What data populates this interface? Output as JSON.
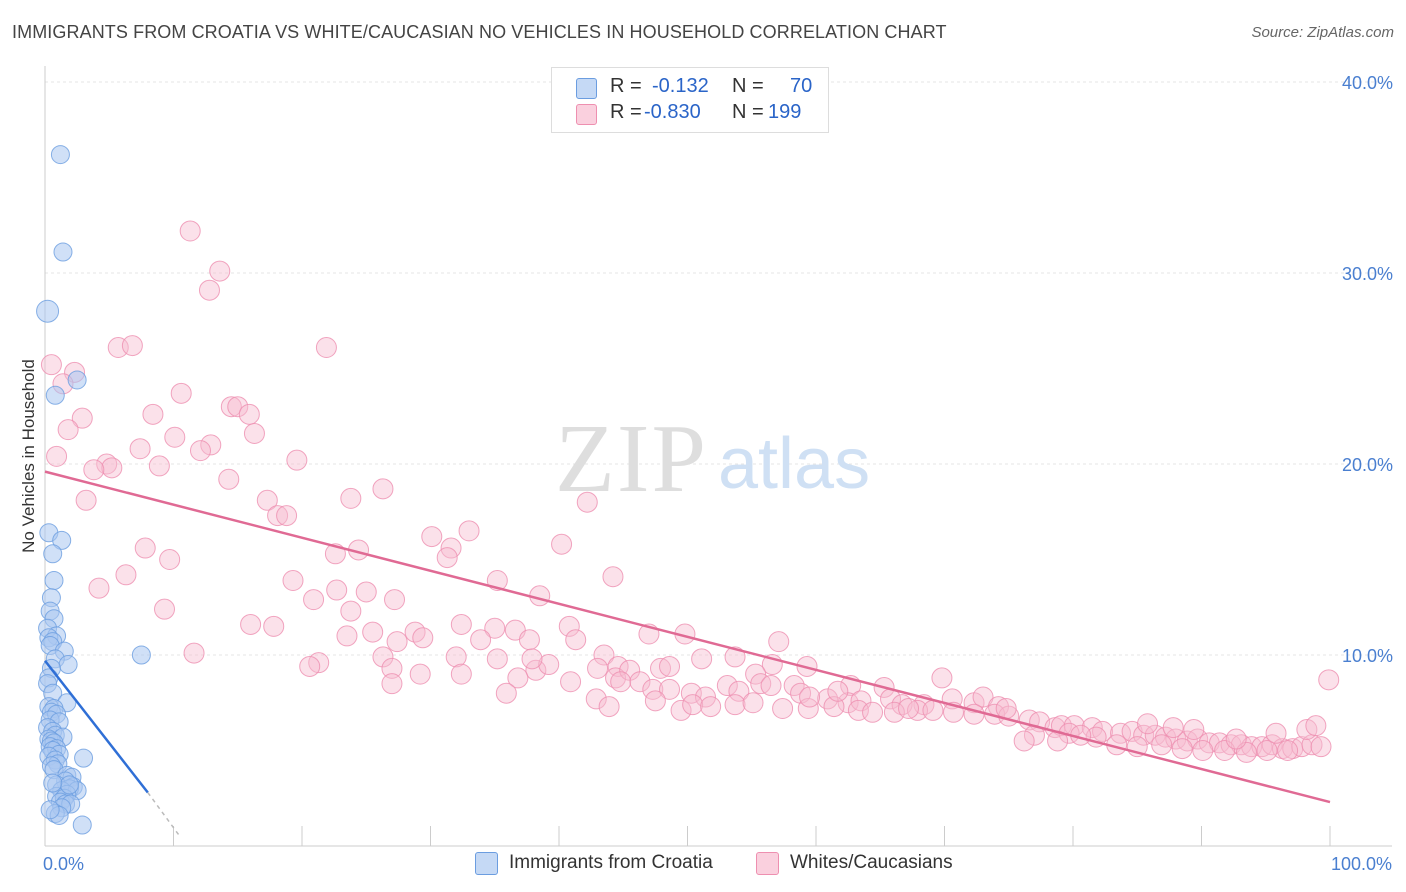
{
  "title": "IMMIGRANTS FROM CROATIA VS WHITE/CAUCASIAN NO VEHICLES IN HOUSEHOLD CORRELATION CHART",
  "source": "Source: ZipAtlas.com",
  "watermark": {
    "zip": "ZIP",
    "atlas": "atlas"
  },
  "legend": {
    "r_label": "R =",
    "n_label": "N =",
    "series": [
      {
        "r": "-0.132",
        "n": "70",
        "color": "#a9c6f0",
        "stroke": "#6b9de0"
      },
      {
        "r": "-0.830",
        "n": "199",
        "color": "#f7bcd0",
        "stroke": "#ee8fb0"
      }
    ]
  },
  "bottom_legend": [
    {
      "label": "Immigrants from Croatia",
      "color": "#a9c6f0",
      "stroke": "#6b9de0"
    },
    {
      "label": "Whites/Caucasians",
      "color": "#f7bcd0",
      "stroke": "#ee8fb0"
    }
  ],
  "chart_data": {
    "type": "scatter",
    "title": "IMMIGRANTS FROM CROATIA VS WHITE/CAUCASIAN NO VEHICLES IN HOUSEHOLD CORRELATION CHART",
    "xlabel": "",
    "ylabel": "No Vehicles in Household",
    "xlim": [
      0,
      100
    ],
    "ylim": [
      0,
      42
    ],
    "x_tick_labels": [
      "0.0%",
      "100.0%"
    ],
    "y_ticks": [
      10,
      20,
      30,
      40
    ],
    "y_tick_labels": [
      "10.0%",
      "20.0%",
      "30.0%",
      "40.0%"
    ],
    "grid": true,
    "legend_position": "top-center",
    "series": [
      {
        "name": "Immigrants from Croatia",
        "color": "#6b9de0",
        "r": -0.132,
        "n": 70,
        "trend": {
          "x0": 0,
          "y0": 9.7,
          "x1": 8.0,
          "y1": 2.8,
          "dash_to_x": 10.5,
          "dash_to_y": 0.5
        },
        "points": [
          [
            1.2,
            36.2
          ],
          [
            1.4,
            31.1
          ],
          [
            0.2,
            28.0
          ],
          [
            2.5,
            24.4
          ],
          [
            0.8,
            23.6
          ],
          [
            0.3,
            16.4
          ],
          [
            1.3,
            16.0
          ],
          [
            0.6,
            15.3
          ],
          [
            0.7,
            13.9
          ],
          [
            0.5,
            13.0
          ],
          [
            0.4,
            12.3
          ],
          [
            0.7,
            11.9
          ],
          [
            0.2,
            11.4
          ],
          [
            0.9,
            11.0
          ],
          [
            0.3,
            10.9
          ],
          [
            0.6,
            10.7
          ],
          [
            0.4,
            10.5
          ],
          [
            1.5,
            10.2
          ],
          [
            7.5,
            10.0
          ],
          [
            0.8,
            9.8
          ],
          [
            1.8,
            9.5
          ],
          [
            0.5,
            9.3
          ],
          [
            0.3,
            8.8
          ],
          [
            0.2,
            8.5
          ],
          [
            0.6,
            8.0
          ],
          [
            1.7,
            7.5
          ],
          [
            0.3,
            7.3
          ],
          [
            0.7,
            7.2
          ],
          [
            0.5,
            7.0
          ],
          [
            0.9,
            6.9
          ],
          [
            0.4,
            6.6
          ],
          [
            1.1,
            6.5
          ],
          [
            0.2,
            6.2
          ],
          [
            0.6,
            6.0
          ],
          [
            0.8,
            5.8
          ],
          [
            1.4,
            5.7
          ],
          [
            0.3,
            5.6
          ],
          [
            0.5,
            5.5
          ],
          [
            0.7,
            5.4
          ],
          [
            0.4,
            5.2
          ],
          [
            0.9,
            5.1
          ],
          [
            0.6,
            5.0
          ],
          [
            1.1,
            4.8
          ],
          [
            0.3,
            4.7
          ],
          [
            0.8,
            4.5
          ],
          [
            3.0,
            4.6
          ],
          [
            1.0,
            4.3
          ],
          [
            0.5,
            4.2
          ],
          [
            0.7,
            4.0
          ],
          [
            1.7,
            3.7
          ],
          [
            2.1,
            3.6
          ],
          [
            1.6,
            3.4
          ],
          [
            0.9,
            3.2
          ],
          [
            2.2,
            3.1
          ],
          [
            1.9,
            3.0
          ],
          [
            1.3,
            2.9
          ],
          [
            2.5,
            2.9
          ],
          [
            1.7,
            2.7
          ],
          [
            0.9,
            2.6
          ],
          [
            1.5,
            2.5
          ],
          [
            1.2,
            2.3
          ],
          [
            1.6,
            2.2
          ],
          [
            2.0,
            2.2
          ],
          [
            1.3,
            2.0
          ],
          [
            0.8,
            1.7
          ],
          [
            1.1,
            1.6
          ],
          [
            2.9,
            1.1
          ],
          [
            0.4,
            1.9
          ],
          [
            1.9,
            3.2
          ],
          [
            0.6,
            3.3
          ]
        ]
      },
      {
        "name": "Whites/Caucasians",
        "color": "#ee8fb0",
        "r": -0.83,
        "n": 199,
        "trend": {
          "x0": 0,
          "y0": 19.6,
          "x1": 100,
          "y1": 2.3
        },
        "points": [
          [
            11.3,
            32.2
          ],
          [
            13.6,
            30.1
          ],
          [
            12.8,
            29.1
          ],
          [
            0.5,
            25.2
          ],
          [
            5.7,
            26.1
          ],
          [
            6.8,
            26.2
          ],
          [
            21.9,
            26.1
          ],
          [
            2.3,
            24.8
          ],
          [
            1.4,
            24.2
          ],
          [
            10.6,
            23.7
          ],
          [
            14.5,
            23.0
          ],
          [
            15.0,
            23.0
          ],
          [
            15.9,
            22.6
          ],
          [
            8.4,
            22.6
          ],
          [
            2.9,
            22.4
          ],
          [
            1.8,
            21.8
          ],
          [
            16.3,
            21.6
          ],
          [
            10.1,
            21.4
          ],
          [
            12.9,
            21.0
          ],
          [
            7.4,
            20.8
          ],
          [
            12.1,
            20.7
          ],
          [
            0.9,
            20.4
          ],
          [
            19.6,
            20.2
          ],
          [
            4.8,
            20.0
          ],
          [
            5.2,
            19.8
          ],
          [
            3.8,
            19.7
          ],
          [
            8.9,
            19.9
          ],
          [
            14.3,
            19.2
          ],
          [
            26.3,
            18.7
          ],
          [
            3.2,
            18.1
          ],
          [
            17.3,
            18.1
          ],
          [
            23.8,
            18.2
          ],
          [
            42.2,
            18.0
          ],
          [
            18.1,
            17.3
          ],
          [
            18.8,
            17.3
          ],
          [
            33.0,
            16.5
          ],
          [
            30.1,
            16.2
          ],
          [
            40.2,
            15.8
          ],
          [
            7.8,
            15.6
          ],
          [
            31.6,
            15.6
          ],
          [
            22.6,
            15.3
          ],
          [
            9.7,
            15.0
          ],
          [
            31.3,
            15.1
          ],
          [
            24.4,
            15.5
          ],
          [
            44.2,
            14.1
          ],
          [
            4.2,
            13.5
          ],
          [
            6.3,
            14.2
          ],
          [
            19.3,
            13.9
          ],
          [
            35.2,
            13.9
          ],
          [
            22.7,
            13.4
          ],
          [
            25.0,
            13.3
          ],
          [
            20.9,
            12.9
          ],
          [
            27.2,
            12.9
          ],
          [
            38.5,
            13.1
          ],
          [
            9.3,
            12.4
          ],
          [
            23.8,
            12.3
          ],
          [
            40.8,
            11.5
          ],
          [
            16.0,
            11.6
          ],
          [
            17.8,
            11.5
          ],
          [
            32.4,
            11.6
          ],
          [
            35.0,
            11.4
          ],
          [
            36.6,
            11.3
          ],
          [
            25.5,
            11.2
          ],
          [
            28.8,
            11.2
          ],
          [
            23.5,
            11.0
          ],
          [
            33.9,
            10.8
          ],
          [
            41.3,
            10.8
          ],
          [
            47.0,
            11.1
          ],
          [
            27.4,
            10.7
          ],
          [
            29.4,
            10.9
          ],
          [
            37.7,
            10.8
          ],
          [
            49.8,
            11.1
          ],
          [
            57.1,
            10.7
          ],
          [
            11.6,
            10.1
          ],
          [
            26.3,
            9.9
          ],
          [
            32.0,
            9.9
          ],
          [
            35.2,
            9.8
          ],
          [
            43.5,
            10.0
          ],
          [
            44.6,
            9.4
          ],
          [
            47.9,
            9.3
          ],
          [
            51.1,
            9.8
          ],
          [
            53.7,
            9.9
          ],
          [
            59.3,
            9.4
          ],
          [
            21.3,
            9.6
          ],
          [
            20.6,
            9.4
          ],
          [
            27.0,
            9.3
          ],
          [
            38.2,
            9.2
          ],
          [
            39.2,
            9.5
          ],
          [
            43.0,
            9.3
          ],
          [
            44.4,
            8.8
          ],
          [
            45.5,
            9.2
          ],
          [
            48.6,
            9.4
          ],
          [
            56.6,
            9.5
          ],
          [
            55.3,
            9.0
          ],
          [
            36.8,
            8.8
          ],
          [
            32.4,
            9.0
          ],
          [
            29.2,
            9.0
          ],
          [
            37.9,
            9.8
          ],
          [
            40.9,
            8.6
          ],
          [
            44.8,
            8.6
          ],
          [
            46.3,
            8.6
          ],
          [
            53.1,
            8.4
          ],
          [
            55.7,
            8.5
          ],
          [
            58.3,
            8.4
          ],
          [
            62.7,
            8.4
          ],
          [
            65.3,
            8.3
          ],
          [
            69.8,
            8.8
          ],
          [
            27.0,
            8.5
          ],
          [
            35.9,
            8.0
          ],
          [
            42.9,
            7.7
          ],
          [
            47.3,
            8.2
          ],
          [
            48.6,
            8.2
          ],
          [
            50.3,
            8.0
          ],
          [
            51.4,
            7.8
          ],
          [
            54.0,
            8.1
          ],
          [
            56.5,
            8.4
          ],
          [
            58.8,
            8.0
          ],
          [
            60.9,
            7.7
          ],
          [
            62.5,
            7.5
          ],
          [
            63.5,
            7.6
          ],
          [
            65.8,
            7.7
          ],
          [
            66.7,
            7.4
          ],
          [
            68.4,
            7.4
          ],
          [
            70.6,
            7.7
          ],
          [
            72.3,
            7.5
          ],
          [
            73.0,
            7.8
          ],
          [
            74.2,
            7.3
          ],
          [
            43.9,
            7.3
          ],
          [
            47.5,
            7.6
          ],
          [
            49.5,
            7.1
          ],
          [
            50.4,
            7.4
          ],
          [
            51.8,
            7.3
          ],
          [
            53.7,
            7.4
          ],
          [
            55.1,
            7.5
          ],
          [
            57.4,
            7.2
          ],
          [
            59.4,
            7.2
          ],
          [
            61.4,
            7.3
          ],
          [
            63.3,
            7.1
          ],
          [
            64.4,
            7.0
          ],
          [
            66.1,
            7.0
          ],
          [
            67.9,
            7.1
          ],
          [
            69.1,
            7.1
          ],
          [
            70.7,
            7.0
          ],
          [
            72.3,
            6.9
          ],
          [
            73.9,
            6.9
          ],
          [
            75.0,
            6.8
          ],
          [
            76.6,
            6.6
          ],
          [
            77.4,
            6.5
          ],
          [
            78.6,
            6.2
          ],
          [
            79.1,
            6.3
          ],
          [
            80.1,
            6.3
          ],
          [
            81.5,
            6.2
          ],
          [
            82.3,
            6.0
          ],
          [
            83.7,
            5.9
          ],
          [
            84.6,
            6.0
          ],
          [
            85.5,
            5.8
          ],
          [
            86.4,
            5.8
          ],
          [
            87.2,
            5.7
          ],
          [
            88.0,
            5.6
          ],
          [
            88.9,
            5.5
          ],
          [
            89.7,
            5.6
          ],
          [
            90.6,
            5.4
          ],
          [
            91.4,
            5.4
          ],
          [
            92.3,
            5.3
          ],
          [
            93.1,
            5.3
          ],
          [
            93.9,
            5.2
          ],
          [
            94.7,
            5.2
          ],
          [
            95.5,
            5.3
          ],
          [
            96.3,
            5.1
          ],
          [
            97.1,
            5.1
          ],
          [
            97.8,
            5.2
          ],
          [
            98.6,
            5.3
          ],
          [
            99.3,
            5.2
          ],
          [
            99.9,
            8.7
          ],
          [
            77.0,
            5.8
          ],
          [
            79.7,
            5.9
          ],
          [
            81.8,
            5.7
          ],
          [
            83.4,
            5.3
          ],
          [
            85.0,
            5.2
          ],
          [
            86.9,
            5.3
          ],
          [
            88.5,
            5.1
          ],
          [
            90.1,
            5.0
          ],
          [
            91.8,
            5.0
          ],
          [
            93.5,
            4.9
          ],
          [
            95.1,
            5.0
          ],
          [
            96.7,
            5.0
          ],
          [
            76.2,
            5.5
          ],
          [
            78.8,
            5.5
          ],
          [
            80.6,
            5.8
          ],
          [
            85.8,
            6.4
          ],
          [
            87.8,
            6.2
          ],
          [
            92.7,
            5.6
          ],
          [
            95.8,
            5.9
          ],
          [
            98.2,
            6.1
          ],
          [
            89.4,
            6.1
          ],
          [
            59.5,
            7.8
          ],
          [
            61.7,
            8.1
          ],
          [
            67.2,
            7.2
          ],
          [
            74.8,
            7.2
          ],
          [
            98.9,
            6.3
          ]
        ]
      }
    ]
  }
}
